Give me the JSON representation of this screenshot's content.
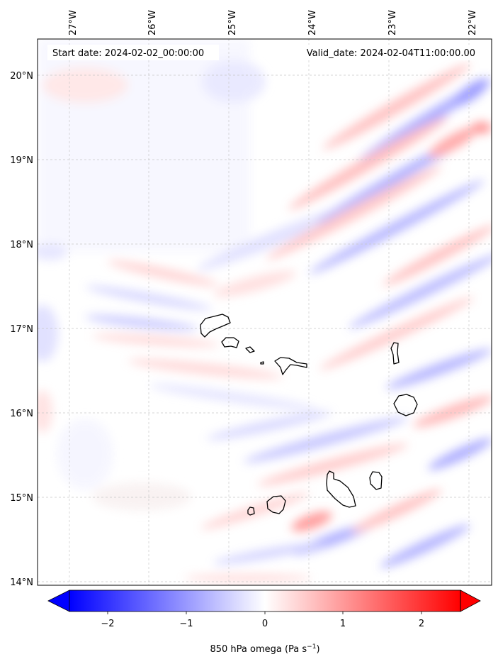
{
  "header": {
    "start_date": "Start date: 2024-02-02_00:00:00",
    "valid_date": "Valid_date: 2024-02-04T11:00:00.00"
  },
  "map": {
    "longitude_labels": [
      "27°W",
      "26°W",
      "25°W",
      "24°W",
      "23°W",
      "22°W"
    ],
    "latitude_labels": [
      "20°N",
      "19°N",
      "18°N",
      "17°N",
      "16°N",
      "15°N",
      "14°N"
    ],
    "gridlines": true,
    "coastlines": "Cape Verde islands"
  },
  "colorbar": {
    "ticks": [
      "−2",
      "−1",
      "0",
      "1",
      "2"
    ],
    "label": "850 hPa omega (Pa s",
    "label_sup": "−1",
    "label_end": ")",
    "colors": {
      "low": "#0000ff",
      "mid": "#ffffff",
      "high": "#ff0000"
    },
    "extend": "both"
  }
}
